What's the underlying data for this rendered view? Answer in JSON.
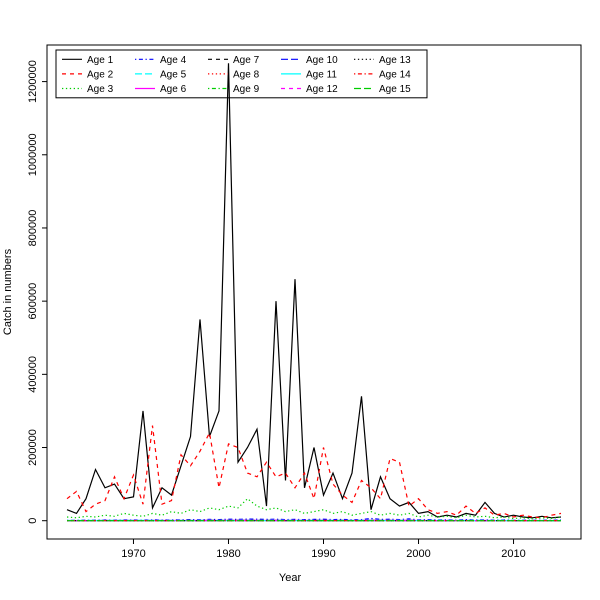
{
  "chart_data": {
    "type": "line",
    "title": "",
    "xlabel": "Year",
    "ylabel": "Catch in numbers",
    "xlim": [
      1960.9,
      2017.1
    ],
    "ylim": [
      -50000,
      1300000
    ],
    "x_ticks": [
      1970,
      1980,
      1990,
      2000,
      2010
    ],
    "y_ticks": [
      0,
      200000,
      400000,
      600000,
      800000,
      1000000,
      1200000
    ],
    "grid": false,
    "legend_position": "top-left",
    "legend_columns": 5,
    "legend_rows": 3,
    "years": [
      1963,
      1964,
      1965,
      1966,
      1967,
      1968,
      1969,
      1970,
      1971,
      1972,
      1973,
      1974,
      1975,
      1976,
      1977,
      1978,
      1979,
      1980,
      1981,
      1982,
      1983,
      1984,
      1985,
      1986,
      1987,
      1988,
      1989,
      1990,
      1991,
      1992,
      1993,
      1994,
      1995,
      1996,
      1997,
      1998,
      1999,
      2000,
      2001,
      2002,
      2003,
      2004,
      2005,
      2006,
      2007,
      2008,
      2009,
      2010,
      2011,
      2012,
      2013,
      2014,
      2015
    ],
    "series": [
      {
        "name": "Age 1",
        "color": "#000000",
        "linetype": "solid",
        "values": [
          30000,
          20000,
          60000,
          140000,
          90000,
          100000,
          60000,
          65000,
          300000,
          35000,
          90000,
          70000,
          150000,
          230000,
          550000,
          230000,
          300000,
          1250000,
          160000,
          200000,
          250000,
          40000,
          600000,
          110000,
          660000,
          90000,
          200000,
          70000,
          130000,
          60000,
          130000,
          340000,
          30000,
          120000,
          60000,
          40000,
          50000,
          20000,
          25000,
          10000,
          15000,
          10000,
          20000,
          15000,
          50000,
          20000,
          10000,
          15000,
          10000,
          8000,
          12000,
          8000,
          10000
        ]
      },
      {
        "name": "Age 2",
        "color": "#FF0000",
        "linetype": "dashed",
        "values": [
          60000,
          80000,
          25000,
          45000,
          55000,
          120000,
          60000,
          125000,
          45000,
          260000,
          45000,
          55000,
          180000,
          150000,
          190000,
          240000,
          90000,
          210000,
          200000,
          130000,
          120000,
          160000,
          120000,
          130000,
          90000,
          130000,
          60000,
          200000,
          100000,
          70000,
          50000,
          110000,
          90000,
          60000,
          170000,
          160000,
          40000,
          60000,
          30000,
          20000,
          25000,
          15000,
          40000,
          20000,
          35000,
          15000,
          20000,
          10000,
          15000,
          10000,
          8000,
          15000,
          20000
        ]
      },
      {
        "name": "Age 3",
        "color": "#00CD00",
        "linetype": "dotted",
        "values": [
          10000,
          8000,
          12000,
          10000,
          15000,
          12000,
          20000,
          15000,
          12000,
          20000,
          15000,
          25000,
          20000,
          30000,
          25000,
          35000,
          30000,
          40000,
          35000,
          60000,
          40000,
          30000,
          35000,
          25000,
          30000,
          20000,
          25000,
          30000,
          20000,
          25000,
          15000,
          20000,
          25000,
          15000,
          20000,
          15000,
          20000,
          10000,
          15000,
          10000,
          12000,
          8000,
          15000,
          10000,
          12000,
          8000,
          10000,
          6000,
          8000,
          5000,
          8000,
          6000,
          10000
        ]
      },
      {
        "name": "Age 4",
        "color": "#0000FF",
        "linetype": "dotdash",
        "values": [
          1000,
          1200,
          1500,
          1300,
          1800,
          1500,
          2000,
          1800,
          1500,
          2500,
          2000,
          2200,
          2500,
          3000,
          2800,
          3500,
          3000,
          4000,
          3500,
          4500,
          4000,
          3500,
          4000,
          3000,
          3500,
          3000,
          3500,
          4000,
          3000,
          3500,
          2500,
          3000,
          6000,
          3500,
          4000,
          3000,
          5000,
          2500,
          3000,
          2000,
          2500,
          1500,
          3000,
          2000,
          2500,
          1500,
          2000,
          1200,
          1500,
          1000,
          1500,
          1200,
          2000
        ]
      },
      {
        "name": "Age 5",
        "color": "#00FFFF",
        "linetype": "longdash",
        "values": [
          500,
          600,
          700,
          600,
          800,
          700,
          900,
          800,
          700,
          1000,
          900,
          1000,
          1100,
          1200,
          1100,
          1400,
          1200,
          1500,
          1300,
          1600,
          1400,
          1200,
          1400,
          1100,
          1300,
          1100,
          1200,
          1400,
          1100,
          1200,
          900,
          1100,
          1500,
          1200,
          1300,
          1000,
          1400,
          900,
          1000,
          700,
          800,
          600,
          1000,
          700,
          800,
          600,
          700,
          500,
          600,
          400,
          500,
          400,
          600
        ]
      },
      {
        "name": "Age 6",
        "color": "#FF00FF",
        "linetype": "solid",
        "values": [
          300,
          350,
          400,
          350,
          450,
          400,
          500,
          450,
          400,
          550,
          500,
          550,
          600,
          650,
          600,
          750,
          650,
          800,
          700,
          850,
          750,
          650,
          750,
          600,
          700,
          600,
          650,
          750,
          600,
          650,
          500,
          600,
          800,
          650,
          700,
          550,
          750,
          500,
          550,
          400,
          450,
          350,
          550,
          400,
          450,
          350,
          400,
          300,
          350,
          250,
          300,
          250,
          350
        ]
      },
      {
        "name": "Age 7",
        "color": "#000000",
        "linetype": "dashed",
        "values": [
          200,
          230,
          260,
          230,
          300,
          260,
          330,
          300,
          260,
          360,
          330,
          360,
          400,
          430,
          400,
          500,
          430,
          530,
          460,
          560,
          500,
          430,
          500,
          400,
          460,
          400,
          430,
          500,
          400,
          430,
          330,
          400,
          530,
          430,
          460,
          360,
          500,
          330,
          360,
          260,
          300,
          230,
          360,
          260,
          300,
          230,
          260,
          200,
          230,
          160,
          200,
          160,
          230
        ]
      },
      {
        "name": "Age 8",
        "color": "#FF0000",
        "linetype": "dotted",
        "values": [
          130,
          150,
          170,
          150,
          200,
          170,
          220,
          200,
          170,
          240,
          220,
          240,
          260,
          290,
          260,
          330,
          290,
          350,
          310,
          370,
          330,
          290,
          330,
          260,
          310,
          260,
          290,
          330,
          260,
          290,
          220,
          260,
          350,
          290,
          310,
          240,
          330,
          220,
          240,
          170,
          200,
          150,
          240,
          170,
          200,
          150,
          170,
          130,
          150,
          110,
          130,
          110,
          150
        ]
      },
      {
        "name": "Age 9",
        "color": "#00CD00",
        "linetype": "dotdash",
        "values": [
          90,
          100,
          120,
          100,
          140,
          120,
          150,
          140,
          120,
          170,
          150,
          170,
          180,
          200,
          180,
          230,
          200,
          250,
          220,
          260,
          230,
          200,
          230,
          180,
          220,
          180,
          200,
          230,
          180,
          200,
          150,
          180,
          250,
          200,
          220,
          170,
          230,
          150,
          170,
          120,
          140,
          100,
          170,
          120,
          140,
          100,
          120,
          90,
          100,
          80,
          90,
          80,
          100
        ]
      },
      {
        "name": "Age 10",
        "color": "#0000FF",
        "linetype": "longdash",
        "values": [
          60,
          70,
          80,
          70,
          90,
          80,
          100,
          90,
          80,
          110,
          100,
          110,
          120,
          130,
          120,
          150,
          130,
          150,
          140,
          160,
          150,
          130,
          150,
          120,
          140,
          120,
          130,
          150,
          120,
          130,
          100,
          120,
          160,
          130,
          140,
          110,
          150,
          100,
          110,
          80,
          90,
          70,
          110,
          80,
          90,
          70,
          80,
          60,
          70,
          50,
          60,
          50,
          70
        ]
      },
      {
        "name": "Age 11",
        "color": "#00FFFF",
        "linetype": "solid",
        "values": [
          40,
          45,
          50,
          45,
          60,
          50,
          65,
          60,
          50,
          70,
          65,
          70,
          75,
          80,
          75,
          95,
          80,
          100,
          85,
          105,
          95,
          80,
          95,
          75,
          85,
          75,
          80,
          95,
          75,
          80,
          65,
          75,
          105,
          85,
          90,
          70,
          95,
          65,
          70,
          50,
          60,
          45,
          70,
          50,
          60,
          45,
          50,
          40,
          45,
          30,
          40,
          30,
          45
        ]
      },
      {
        "name": "Age 12",
        "color": "#FF00FF",
        "linetype": "dashed",
        "values": [
          25,
          28,
          32,
          28,
          38,
          32,
          42,
          38,
          32,
          45,
          42,
          45,
          48,
          52,
          48,
          60,
          52,
          65,
          55,
          68,
          60,
          52,
          60,
          48,
          55,
          48,
          52,
          60,
          48,
          52,
          42,
          48,
          68,
          55,
          58,
          45,
          60,
          42,
          45,
          32,
          38,
          28,
          45,
          32,
          38,
          28,
          32,
          25,
          28,
          20,
          25,
          20,
          28
        ]
      },
      {
        "name": "Age 13",
        "color": "#000000",
        "linetype": "dotted",
        "values": [
          15,
          17,
          20,
          17,
          23,
          20,
          26,
          23,
          20,
          28,
          26,
          28,
          30,
          33,
          30,
          38,
          33,
          41,
          35,
          43,
          38,
          33,
          38,
          30,
          35,
          30,
          33,
          38,
          30,
          33,
          26,
          30,
          43,
          35,
          37,
          28,
          38,
          26,
          28,
          20,
          23,
          17,
          28,
          20,
          23,
          17,
          20,
          15,
          17,
          12,
          15,
          12,
          17
        ]
      },
      {
        "name": "Age 14",
        "color": "#FF0000",
        "linetype": "dotdash",
        "values": [
          8,
          9,
          11,
          9,
          13,
          11,
          14,
          13,
          11,
          16,
          14,
          16,
          17,
          19,
          17,
          22,
          19,
          24,
          20,
          25,
          22,
          19,
          22,
          17,
          20,
          17,
          19,
          22,
          17,
          19,
          14,
          17,
          25,
          20,
          21,
          16,
          22,
          14,
          16,
          11,
          13,
          9,
          16,
          11,
          13,
          9,
          11,
          8,
          9,
          7,
          8,
          7,
          9
        ]
      },
      {
        "name": "Age 15",
        "color": "#00CD00",
        "linetype": "longdash",
        "values": [
          4,
          5,
          6,
          5,
          7,
          6,
          8,
          7,
          6,
          9,
          8,
          9,
          10,
          11,
          10,
          12,
          11,
          13,
          11,
          14,
          12,
          11,
          12,
          10,
          11,
          10,
          11,
          12,
          10,
          11,
          8,
          10,
          14,
          11,
          12,
          9,
          12,
          8,
          9,
          6,
          7,
          5,
          9,
          6,
          7,
          5,
          6,
          4,
          5,
          3,
          4,
          3,
          5
        ]
      }
    ]
  }
}
